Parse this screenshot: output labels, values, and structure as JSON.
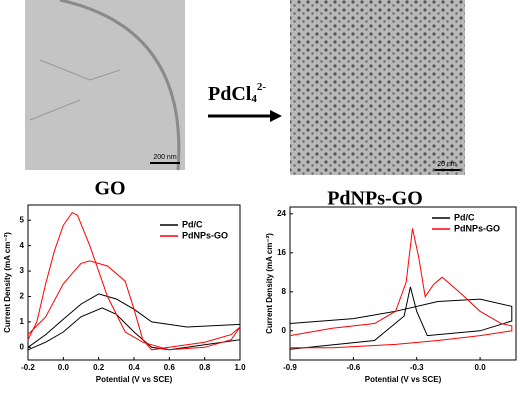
{
  "figure": {
    "left_label": "GO",
    "right_label": "PdNPs-GO",
    "reagent": {
      "base": "PdCl",
      "sub": "4",
      "sup": "2-"
    },
    "left_scale": "200 nm",
    "right_scale": "20 nm"
  },
  "chart_data": [
    {
      "type": "line",
      "x_label": "Potential  (V vs SCE)",
      "y_label": "Current Density (mA cm⁻²)",
      "xlim": [
        -0.2,
        1.0
      ],
      "xticks": [
        -0.2,
        {
          "value": 0,
          "label": "0.0"
        },
        0.2,
        0.4,
        0.6,
        0.8,
        {
          "value": 1,
          "label": "1.0"
        }
      ],
      "ylim": [
        -0.5,
        5.6
      ],
      "yticks": [
        0,
        1,
        2,
        3,
        4,
        5
      ],
      "series": [
        {
          "name": "Pd/C",
          "color": "#000000",
          "x": [
            -0.2,
            -0.1,
            0.0,
            0.1,
            0.2,
            0.3,
            0.4,
            0.5,
            0.7,
            1.0,
            1.0,
            0.8,
            0.6,
            0.5,
            0.4,
            0.3,
            0.22,
            0.1,
            0.0,
            -0.1,
            -0.2
          ],
          "values": [
            0.0,
            0.5,
            1.1,
            1.7,
            2.1,
            1.9,
            1.5,
            1.0,
            0.8,
            0.9,
            0.3,
            0.1,
            -0.1,
            0.0,
            0.6,
            1.3,
            1.55,
            1.2,
            0.6,
            0.2,
            -0.1
          ]
        },
        {
          "name": "PdNPs-GO",
          "color": "#ff0000",
          "x": [
            -0.2,
            -0.1,
            0.0,
            0.1,
            0.15,
            0.25,
            0.35,
            0.4,
            0.45,
            0.5,
            0.6,
            0.8,
            0.95,
            1.0,
            0.95,
            0.8,
            0.6,
            0.45,
            0.35,
            0.25,
            0.15,
            0.08,
            0.05,
            0.0,
            -0.05,
            -0.1,
            -0.15,
            -0.2
          ],
          "values": [
            0.5,
            1.2,
            2.5,
            3.3,
            3.4,
            3.2,
            2.6,
            1.5,
            0.3,
            -0.1,
            0.0,
            0.2,
            0.5,
            0.8,
            0.3,
            0.0,
            -0.1,
            0.2,
            0.6,
            2.0,
            4.0,
            5.2,
            5.3,
            4.8,
            3.8,
            2.5,
            1.0,
            0.3
          ]
        }
      ]
    },
    {
      "type": "line",
      "x_label": "Potential  (V vs SCE)",
      "y_label": "Current Density (mA cm⁻²)",
      "xlim": [
        -0.9,
        0.17
      ],
      "xticks": [
        -0.9,
        -0.6,
        -0.3,
        {
          "value": 0,
          "label": "0.0"
        }
      ],
      "ylim": [
        -6,
        25.4
      ],
      "yticks": [
        0,
        8,
        16,
        24
      ],
      "series": [
        {
          "name": "Pd/C",
          "color": "#000000",
          "x": [
            -0.9,
            -0.6,
            -0.4,
            -0.2,
            0.0,
            0.15,
            0.15,
            0.0,
            -0.25,
            -0.3,
            -0.33,
            -0.36,
            -0.5,
            -0.9
          ],
          "values": [
            1.5,
            2.5,
            4,
            6,
            6.5,
            5,
            2,
            0,
            -1,
            4,
            9,
            3,
            -2,
            -3.8
          ]
        },
        {
          "name": "PdNPs-GO",
          "color": "#ff0000",
          "x": [
            -0.9,
            -0.7,
            -0.5,
            -0.4,
            -0.35,
            -0.32,
            -0.29,
            -0.26,
            -0.22,
            -0.18,
            -0.1,
            0.0,
            0.1,
            0.15,
            0.15,
            0.0,
            -0.2,
            -0.4,
            -0.7,
            -0.9
          ],
          "values": [
            -1,
            0.5,
            1.5,
            4,
            10,
            21,
            15,
            7,
            9.5,
            11,
            8,
            4,
            1.5,
            1,
            0,
            -1,
            -2,
            -2.8,
            -3.5,
            -3.5
          ]
        }
      ]
    }
  ]
}
